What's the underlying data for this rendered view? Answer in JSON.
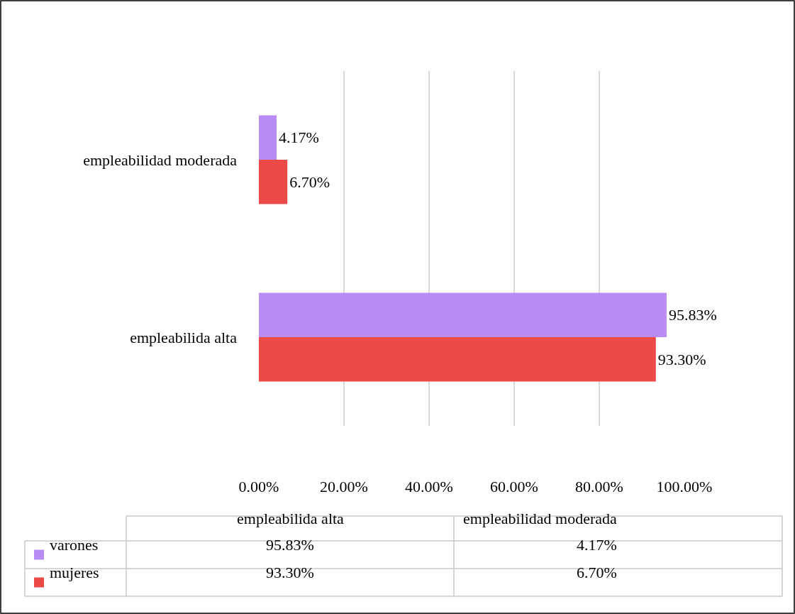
{
  "chart_data": {
    "type": "bar",
    "orientation": "horizontal",
    "categories": [
      "empleabilidad moderada",
      "empleabilida alta"
    ],
    "series": [
      {
        "name": "varones",
        "color": "#b98cf5",
        "values": [
          4.17,
          95.83
        ],
        "value_labels": [
          "4.17%",
          "95.83%"
        ]
      },
      {
        "name": "mujeres",
        "color": "#eb4a47",
        "values": [
          6.7,
          93.3
        ],
        "value_labels": [
          "6.70%",
          "93.30%"
        ]
      }
    ],
    "xlim": [
      0,
      100
    ],
    "xticks": [
      {
        "value": 0,
        "label": "0.00%"
      },
      {
        "value": 20,
        "label": "20.00%"
      },
      {
        "value": 40,
        "label": "40.00%"
      },
      {
        "value": 60,
        "label": "60.00%"
      },
      {
        "value": 80,
        "label": "80.00%"
      },
      {
        "value": 100,
        "label": "100.00%"
      }
    ],
    "grid": "x",
    "legend": "bottom"
  }
}
